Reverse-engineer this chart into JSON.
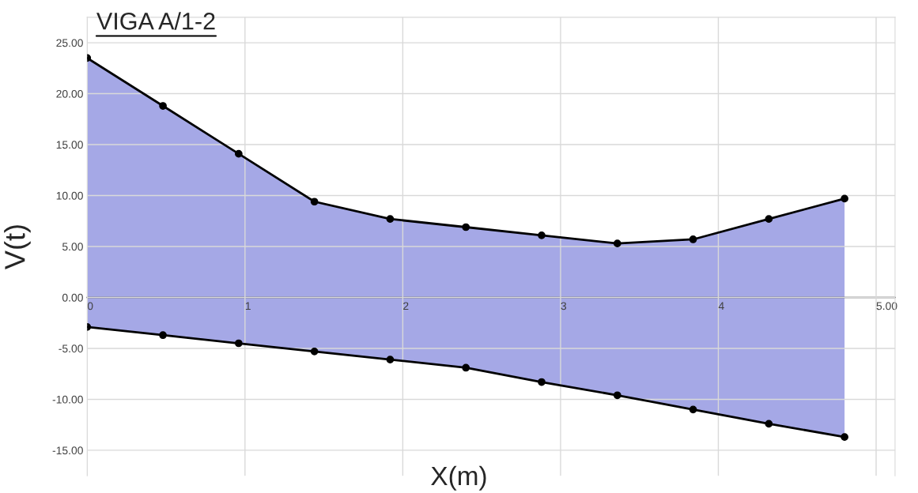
{
  "chart_data": {
    "type": "area",
    "title": "VIGA A/1-2",
    "xlabel": "X(m)",
    "ylabel": "V(t)",
    "x": [
      0,
      0.48,
      0.96,
      1.44,
      1.92,
      2.4,
      2.88,
      3.36,
      3.84,
      4.32,
      4.8
    ],
    "series": [
      {
        "color": "#a5a8e6",
        "values": [
          23.5,
          18.8,
          14.1,
          9.4,
          7.7,
          6.9,
          6.1,
          5.3,
          5.7,
          7.7,
          9.7
        ]
      },
      {
        "color": "#a5a8e6",
        "values": [
          -2.9,
          -3.7,
          -4.5,
          -5.3,
          -6.1,
          -6.9,
          -8.3,
          -9.6,
          -11.0,
          -12.4,
          -13.7
        ]
      }
    ],
    "xlim": [
      0,
      5.12
    ],
    "ylim": [
      -17.5,
      27.5
    ],
    "xticks": [
      0,
      1,
      2,
      3,
      4,
      {
        "value": 5,
        "label": "5.00"
      }
    ],
    "yticks": [
      {
        "value": -15,
        "label": "-15.00"
      },
      {
        "value": -10,
        "label": "-10.00"
      },
      {
        "value": -5,
        "label": "-5.00"
      },
      {
        "value": 0,
        "label": "0.00"
      },
      {
        "value": 5,
        "label": "5.00"
      },
      {
        "value": 10,
        "label": "10.00"
      },
      {
        "value": 15,
        "label": "15.00"
      },
      {
        "value": 20,
        "label": "20.00"
      },
      {
        "value": 25,
        "label": "25.00"
      }
    ],
    "grid": true,
    "marker": "circle",
    "line_style": "solid"
  }
}
